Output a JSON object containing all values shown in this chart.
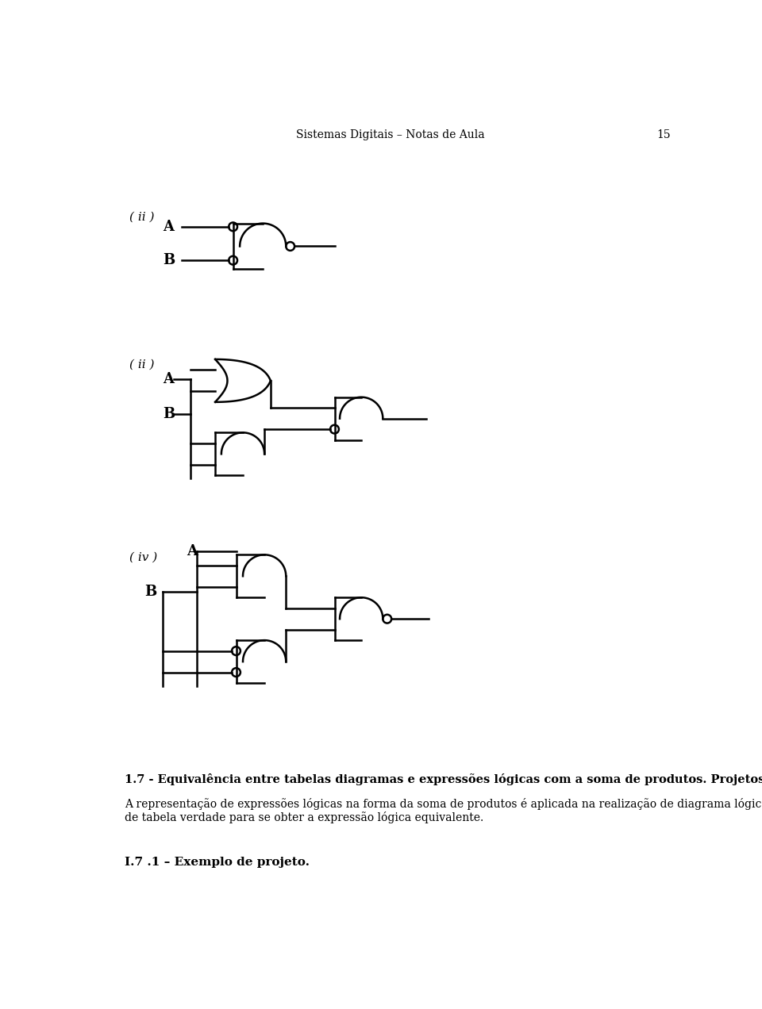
{
  "header_text": "Sistemas Digitais – Notas de Aula",
  "page_number": "15",
  "diagram1_label": "( ii )",
  "diagram2_label": "( ii )",
  "diagram3_label": "( iv )",
  "label_A": "A",
  "label_B": "B",
  "section_title": "1.7 - Equivalência entre tabelas diagramas e expressões lógicas com a soma de produtos. Projetos",
  "section_body1": "A representação de expressões lógicas na forma da soma de produtos é aplicada na realização de diagrama lógico e",
  "section_body2": "de tabela verdade para se obter a expressão lógica equivalente.",
  "subsection_title": "I.7 .1 – Exemplo de projeto.",
  "bg_color": "#ffffff",
  "line_color": "#000000"
}
